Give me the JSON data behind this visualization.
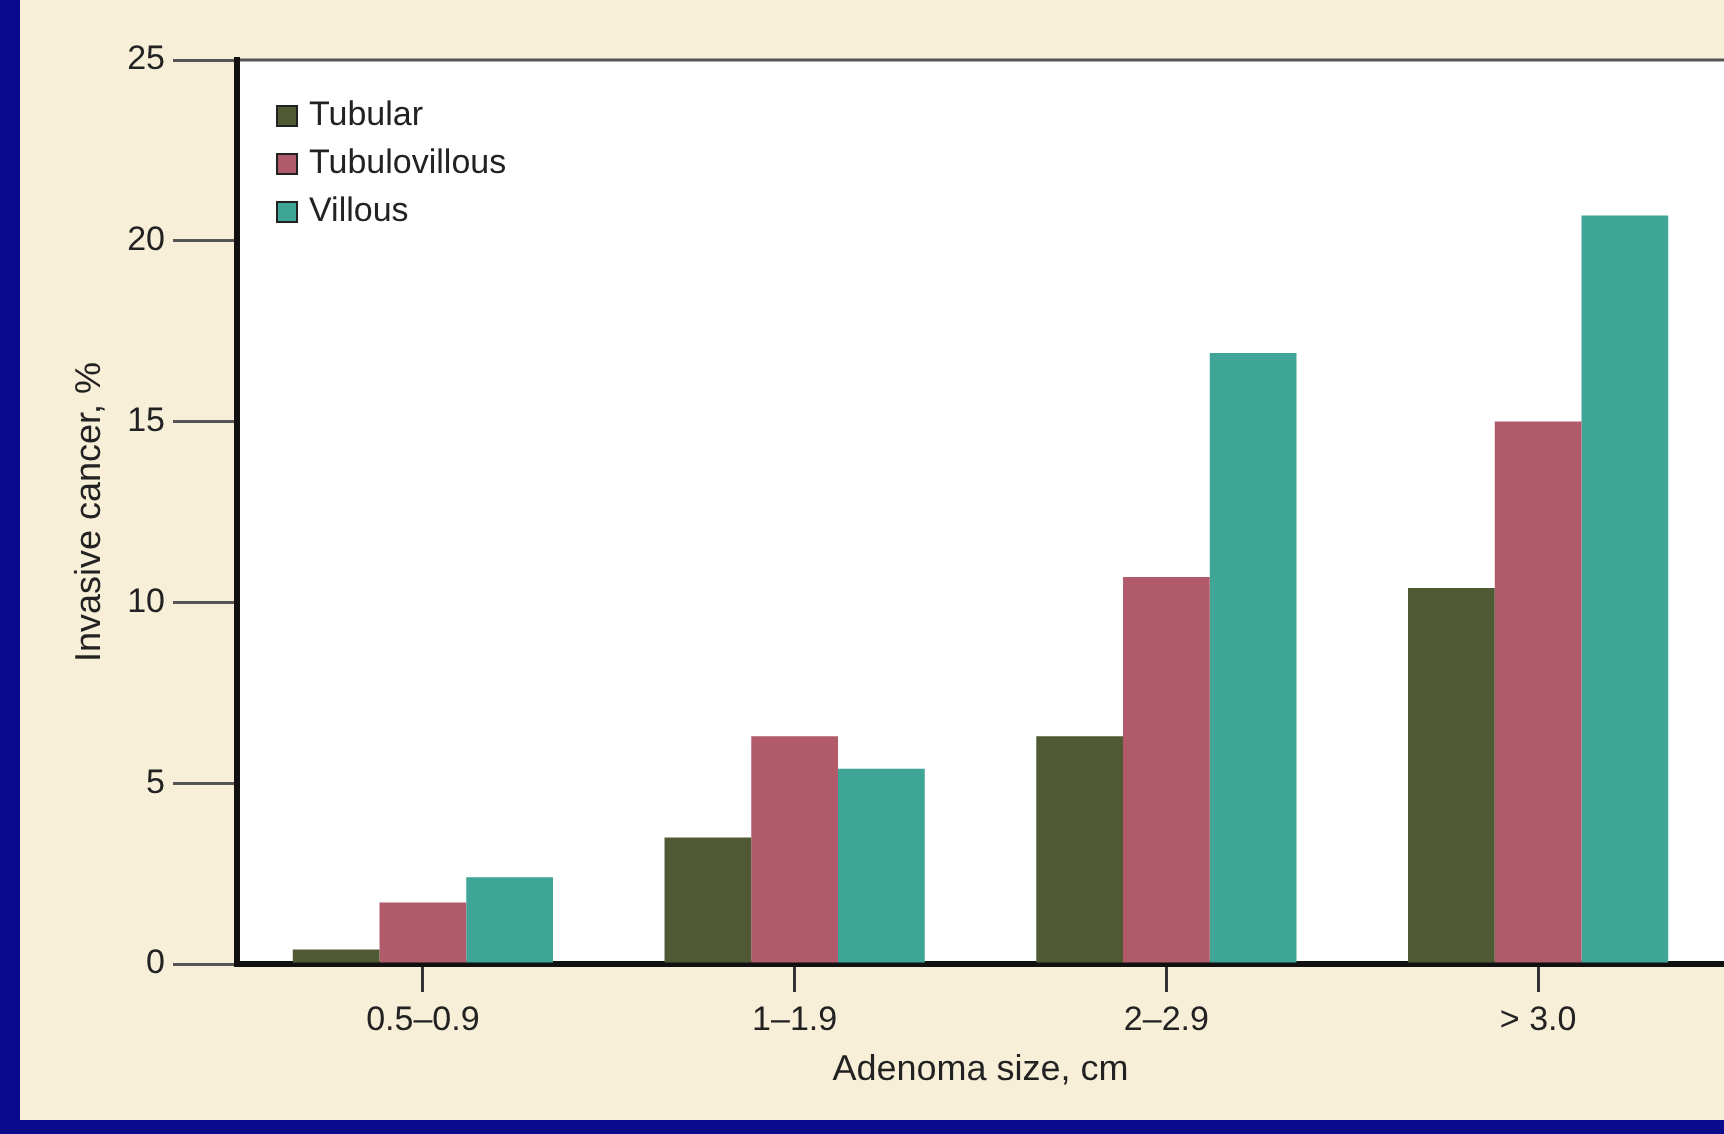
{
  "chart_data": {
    "type": "bar",
    "xlabel": "Adenoma size, cm",
    "ylabel": "Invasive cancer, %",
    "categories": [
      "0.5–0.9",
      "1–1.9",
      "2–2.9",
      "> 3.0"
    ],
    "series": [
      {
        "name": "Tubular",
        "color": "#4f5a35",
        "values": [
          0.4,
          3.5,
          6.3,
          10.4
        ]
      },
      {
        "name": "Tubulovillous",
        "color": "#b05a6a",
        "values": [
          1.7,
          6.3,
          10.7,
          15.0
        ]
      },
      {
        "name": "Villous",
        "color": "#3fa597",
        "values": [
          2.4,
          5.4,
          16.9,
          20.7
        ]
      }
    ],
    "ylim": [
      0,
      25
    ],
    "yticks": [
      0,
      5,
      10,
      15,
      20,
      25
    ],
    "legend": "top left"
  }
}
